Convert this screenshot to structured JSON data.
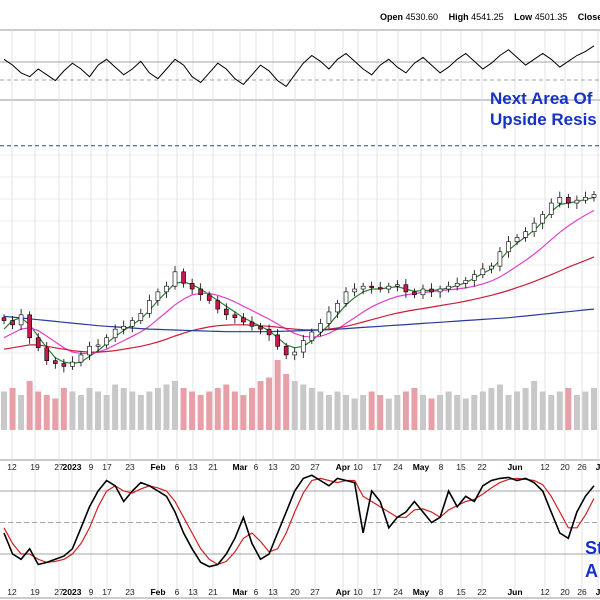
{
  "header": {
    "open_label": "Open",
    "open_value": "4530.60",
    "high_label": "High",
    "high_value": "4541.25",
    "low_label": "Low",
    "low_value": "4501.35",
    "close_label": "Close"
  },
  "annotations": {
    "line1": "Next Area Of",
    "line2": "Upside Resis",
    "stoch1": "St",
    "stoch2": "A"
  },
  "colors": {
    "annotation": "#1531c8",
    "candle_up": "#ffffff",
    "candle_down": "#c8184b",
    "ma_short": "#2e7d2e",
    "ma_mid": "#e040c8",
    "ma_long": "#c81e3a",
    "ma_200": "#283c96",
    "volume_up": "#c8c8c8",
    "volume_down": "#e8a0a8",
    "stoch_k": "#000000",
    "stoch_d": "#d02020"
  },
  "chart_data": {
    "type": "candlestick",
    "x_tick_labels": [
      {
        "label": "12",
        "bold": false
      },
      {
        "label": "19",
        "bold": false
      },
      {
        "label": "27",
        "bold": false
      },
      {
        "label": "2023",
        "bold": true
      },
      {
        "label": "9",
        "bold": false
      },
      {
        "label": "17",
        "bold": false
      },
      {
        "label": "23",
        "bold": false
      },
      {
        "label": "Feb",
        "bold": true
      },
      {
        "label": "6",
        "bold": false
      },
      {
        "label": "13",
        "bold": false
      },
      {
        "label": "21",
        "bold": false
      },
      {
        "label": "Mar",
        "bold": true
      },
      {
        "label": "6",
        "bold": false
      },
      {
        "label": "13",
        "bold": false
      },
      {
        "label": "20",
        "bold": false
      },
      {
        "label": "27",
        "bold": false
      },
      {
        "label": "Apr",
        "bold": true
      },
      {
        "label": "10",
        "bold": false
      },
      {
        "label": "17",
        "bold": false
      },
      {
        "label": "24",
        "bold": false
      },
      {
        "label": "May",
        "bold": true
      },
      {
        "label": "8",
        "bold": false
      },
      {
        "label": "15",
        "bold": false
      },
      {
        "label": "22",
        "bold": false
      },
      {
        "label": "Jun",
        "bold": true
      },
      {
        "label": "12",
        "bold": false
      },
      {
        "label": "20",
        "bold": false
      },
      {
        "label": "26",
        "bold": false
      },
      {
        "label": "J",
        "bold": true
      }
    ],
    "price_series_close": [
      3990,
      3975,
      4010,
      3930,
      3895,
      3850,
      3840,
      3830,
      3845,
      3870,
      3900,
      3905,
      3930,
      3960,
      3970,
      3990,
      4015,
      4060,
      4090,
      4110,
      4160,
      4120,
      4100,
      4080,
      4060,
      4030,
      4010,
      4000,
      3985,
      3970,
      3960,
      3940,
      3900,
      3870,
      3880,
      3920,
      3950,
      3980,
      4020,
      4050,
      4090,
      4100,
      4110,
      4105,
      4100,
      4110,
      4115,
      4090,
      4080,
      4100,
      4090,
      4100,
      4110,
      4120,
      4130,
      4150,
      4170,
      4180,
      4230,
      4265,
      4280,
      4300,
      4330,
      4360,
      4400,
      4420,
      4400,
      4410,
      4420,
      4430
    ],
    "moving_averages": [
      {
        "name": "short",
        "values": [
          3960,
          3990,
          4000,
          3975,
          3935,
          3895,
          3860,
          3845,
          3840,
          3845,
          3865,
          3885,
          3910,
          3935,
          3955,
          3975,
          3995,
          4025,
          4060,
          4090,
          4120,
          4125,
          4115,
          4100,
          4080,
          4060,
          4040,
          4020,
          4000,
          3985,
          3970,
          3955,
          3930,
          3905,
          3895,
          3900,
          3920,
          3945,
          3975,
          4010,
          4045,
          4070,
          4090,
          4100,
          4100,
          4105,
          4108,
          4100,
          4092,
          4095,
          4095,
          4098,
          4104,
          4112,
          4122,
          4138,
          4155,
          4170,
          4200,
          4235,
          4260,
          4282,
          4305,
          4335,
          4370,
          4395,
          4400,
          4405,
          4412,
          4420
        ]
      },
      {
        "name": "mid",
        "values": [
          3930,
          3945,
          3960,
          3965,
          3955,
          3935,
          3915,
          3895,
          3880,
          3875,
          3875,
          3880,
          3890,
          3905,
          3920,
          3935,
          3950,
          3970,
          3995,
          4020,
          4045,
          4065,
          4080,
          4085,
          4085,
          4078,
          4068,
          4055,
          4040,
          4025,
          4010,
          3995,
          3978,
          3960,
          3945,
          3935,
          3932,
          3935,
          3945,
          3960,
          3980,
          4000,
          4020,
          4038,
          4052,
          4064,
          4074,
          4080,
          4084,
          4088,
          4091,
          4094,
          4097,
          4100,
          4104,
          4110,
          4118,
          4128,
          4142,
          4160,
          4180,
          4200,
          4222,
          4246,
          4272,
          4298,
          4320,
          4340,
          4358,
          4374
        ]
      },
      {
        "name": "long",
        "values": [
          3890,
          3895,
          3900,
          3905,
          3905,
          3900,
          3895,
          3890,
          3885,
          3882,
          3880,
          3880,
          3882,
          3885,
          3890,
          3895,
          3900,
          3907,
          3915,
          3925,
          3936,
          3946,
          3955,
          3962,
          3968,
          3972,
          3974,
          3975,
          3975,
          3974,
          3972,
          3970,
          3967,
          3963,
          3960,
          3958,
          3957,
          3958,
          3960,
          3964,
          3970,
          3977,
          3985,
          3993,
          4001,
          4009,
          4016,
          4022,
          4027,
          4032,
          4037,
          4042,
          4047,
          4052,
          4058,
          4064,
          4071,
          4078,
          4086,
          4095,
          4105,
          4115,
          4126,
          4138,
          4150,
          4163,
          4176,
          4188,
          4200,
          4212
        ]
      },
      {
        "name": "200",
        "values": [
          4005,
          4002,
          3999,
          3996,
          3993,
          3990,
          3987,
          3984,
          3981,
          3978,
          3975,
          3972,
          3970,
          3968,
          3966,
          3964,
          3962,
          3960,
          3959,
          3958,
          3957,
          3956,
          3955,
          3954,
          3953,
          3952,
          3951,
          3951,
          3951,
          3951,
          3951,
          3951,
          3952,
          3953,
          3954,
          3955,
          3956,
          3957,
          3958,
          3960,
          3962,
          3964,
          3966,
          3968,
          3970,
          3972,
          3974,
          3976,
          3978,
          3980,
          3982,
          3984,
          3986,
          3988,
          3990,
          3992,
          3994,
          3996,
          3998,
          4000,
          4003,
          4006,
          4009,
          4012,
          4015,
          4018,
          4021,
          4024,
          4027,
          4030
        ]
      }
    ],
    "volume_relative": [
      0.55,
      0.6,
      0.5,
      0.7,
      0.55,
      0.5,
      0.45,
      0.6,
      0.55,
      0.5,
      0.6,
      0.55,
      0.5,
      0.65,
      0.6,
      0.55,
      0.5,
      0.55,
      0.6,
      0.65,
      0.7,
      0.6,
      0.55,
      0.5,
      0.55,
      0.6,
      0.65,
      0.55,
      0.5,
      0.6,
      0.7,
      0.75,
      1.0,
      0.8,
      0.7,
      0.65,
      0.6,
      0.55,
      0.5,
      0.55,
      0.5,
      0.45,
      0.5,
      0.55,
      0.5,
      0.45,
      0.5,
      0.55,
      0.6,
      0.5,
      0.45,
      0.5,
      0.55,
      0.5,
      0.45,
      0.5,
      0.55,
      0.6,
      0.65,
      0.5,
      0.55,
      0.6,
      0.7,
      0.55,
      0.5,
      0.55,
      0.6,
      0.5,
      0.55,
      0.6
    ],
    "oscillator_top": [
      55,
      52,
      48,
      46,
      50,
      47,
      44,
      49,
      53,
      50,
      46,
      52,
      55,
      51,
      47,
      50,
      54,
      48,
      45,
      50,
      55,
      52,
      46,
      43,
      48,
      53,
      50,
      45,
      42,
      47,
      52,
      49,
      44,
      41,
      47,
      53,
      57,
      54,
      50,
      55,
      58,
      54,
      50,
      47,
      52,
      55,
      51,
      48,
      53,
      56,
      52,
      48,
      51,
      55,
      58,
      54,
      50,
      53,
      57,
      60,
      56,
      52,
      55,
      58,
      55,
      51,
      54,
      57,
      59,
      62
    ],
    "stochastic_k": [
      40,
      20,
      15,
      25,
      10,
      12,
      15,
      18,
      25,
      45,
      65,
      80,
      90,
      85,
      70,
      80,
      88,
      85,
      80,
      75,
      60,
      40,
      25,
      12,
      8,
      10,
      20,
      35,
      55,
      30,
      15,
      20,
      40,
      60,
      80,
      92,
      95,
      90,
      85,
      92,
      90,
      88,
      40,
      80,
      70,
      45,
      55,
      60,
      70,
      60,
      50,
      55,
      80,
      65,
      75,
      70,
      85,
      90,
      92,
      93,
      90,
      92,
      88,
      80,
      60,
      40,
      35,
      60,
      75,
      85
    ],
    "stochastic_d": [
      45,
      30,
      20,
      20,
      15,
      12,
      13,
      15,
      20,
      30,
      45,
      65,
      80,
      85,
      80,
      78,
      82,
      85,
      83,
      80,
      70,
      55,
      40,
      25,
      15,
      10,
      13,
      22,
      35,
      40,
      32,
      22,
      25,
      40,
      60,
      78,
      90,
      92,
      90,
      88,
      90,
      90,
      75,
      70,
      65,
      60,
      55,
      55,
      62,
      63,
      60,
      55,
      62,
      66,
      70,
      72,
      77,
      83,
      88,
      91,
      92,
      91,
      90,
      86,
      75,
      60,
      45,
      45,
      57,
      73
    ],
    "stochastic_levels": [
      80,
      20
    ],
    "resistance_level": 4600
  }
}
